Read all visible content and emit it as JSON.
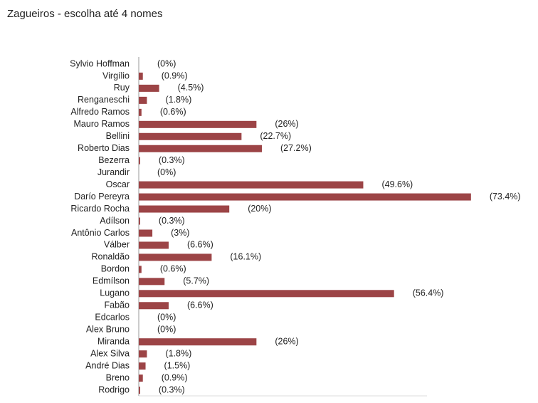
{
  "chart_data": {
    "type": "bar",
    "orientation": "horizontal",
    "title": "Zagueiros - escolha até 4 nomes",
    "categories": [
      "Sylvio Hoffman",
      "Virgílio",
      "Ruy",
      "Renganeschi",
      "Alfredo Ramos",
      "Mauro Ramos",
      "Bellini",
      "Roberto Dias",
      "Bezerra",
      "Jurandir",
      "Oscar",
      "Darío Pereyra",
      "Ricardo Rocha",
      "Adílson",
      "Antônio Carlos",
      "Válber",
      "Ronaldão",
      "Bordon",
      "Edmílson",
      "Lugano",
      "Fabão",
      "Edcarlos",
      "Alex Bruno",
      "Miranda",
      "Alex Silva",
      "André Dias",
      "Breno",
      "Rodrigo"
    ],
    "values": [
      0,
      0.9,
      4.5,
      1.8,
      0.6,
      26,
      22.7,
      27.2,
      0.3,
      0,
      49.6,
      73.4,
      20,
      0.3,
      3,
      6.6,
      16.1,
      0.6,
      5.7,
      56.4,
      6.6,
      0,
      0,
      26,
      1.8,
      1.5,
      0.9,
      0.3
    ],
    "value_labels": [
      "(0%)",
      "(0.9%)",
      "(4.5%)",
      "(1.8%)",
      "(0.6%)",
      "(26%)",
      "(22.7%)",
      "(27.2%)",
      "(0.3%)",
      "(0%)",
      "(49.6%)",
      "(73.4%)",
      "(20%)",
      "(0.3%)",
      "(3%)",
      "(6.6%)",
      "(16.1%)",
      "(0.6%)",
      "(5.7%)",
      "(56.4%)",
      "(6.6%)",
      "(0%)",
      "(0%)",
      "(26%)",
      "(1.8%)",
      "(1.5%)",
      "(0.9%)",
      "(0.3%)"
    ],
    "color": "#9c4446",
    "xlim": [
      0,
      75
    ]
  }
}
